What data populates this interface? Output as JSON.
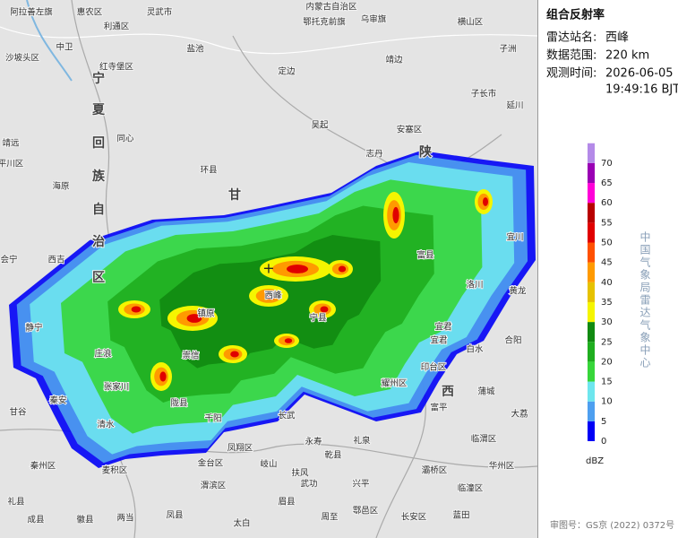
{
  "panel": {
    "title": "组合反射率",
    "station_label": "雷达站名:",
    "station": "西峰",
    "range_label": "数据范围:",
    "range": "220 km",
    "time_label": "观测时间:",
    "date": "2026-06-05",
    "time": "19:49:16 BJT"
  },
  "legend": {
    "unit": "dBZ",
    "levels": [
      0,
      5,
      10,
      15,
      20,
      25,
      30,
      35,
      40,
      45,
      50,
      55,
      60,
      65,
      70
    ],
    "colors": [
      "#0000f6",
      "#4e9ff0",
      "#6ee6ee",
      "#37d63a",
      "#1fae1f",
      "#118a11",
      "#f5f500",
      "#e6c200",
      "#ff9a00",
      "#ff5000",
      "#e00000",
      "#b80000",
      "#ff00d8",
      "#9a00b4",
      "#b48ae8"
    ]
  },
  "credit": "中国气象局雷达气象中心",
  "approval": "审图号：GS京 (2022) 0372号",
  "map": {
    "labels": [
      "阿拉善左旗",
      "惠农区",
      "利通区",
      "灵武市",
      "内蒙古自治区",
      "鄂托克前旗",
      "乌审旗",
      "横山区",
      "子洲",
      "盐池",
      "定边",
      "靖边",
      "吴起",
      "安塞区",
      "子长市",
      "延川",
      "志丹",
      "中卫",
      "沙坡头区",
      "红寺堡区",
      "同心",
      "海原",
      "平川区",
      "靖远",
      "会宁",
      "西吉",
      "环县",
      "甘",
      "陕",
      "西",
      "宁",
      "夏",
      "回",
      "族",
      "自",
      "治",
      "区",
      "富县",
      "洛川",
      "黄龙",
      "宜川",
      "宜君",
      "白水",
      "合阳",
      "印台区",
      "耀州区",
      "富平",
      "蒲城",
      "大荔",
      "临渭区",
      "华州区",
      "礼泉",
      "乾县",
      "永寿",
      "长武",
      "崇信",
      "庄浪",
      "静宁",
      "秦安",
      "甘谷",
      "张家川",
      "清水",
      "麦积区",
      "秦州区",
      "礼县",
      "陇县",
      "千阳",
      "凤翔区",
      "金台区",
      "渭滨区",
      "岐山",
      "扶风",
      "眉县",
      "太白",
      "周至",
      "鄠邑区",
      "长安区",
      "蓝田",
      "临潼区",
      "灞桥区",
      "武功",
      "兴平",
      "凤县",
      "两当",
      "徽县",
      "成县",
      "西峰",
      "镇原",
      "宁县",
      "宜君"
    ]
  }
}
